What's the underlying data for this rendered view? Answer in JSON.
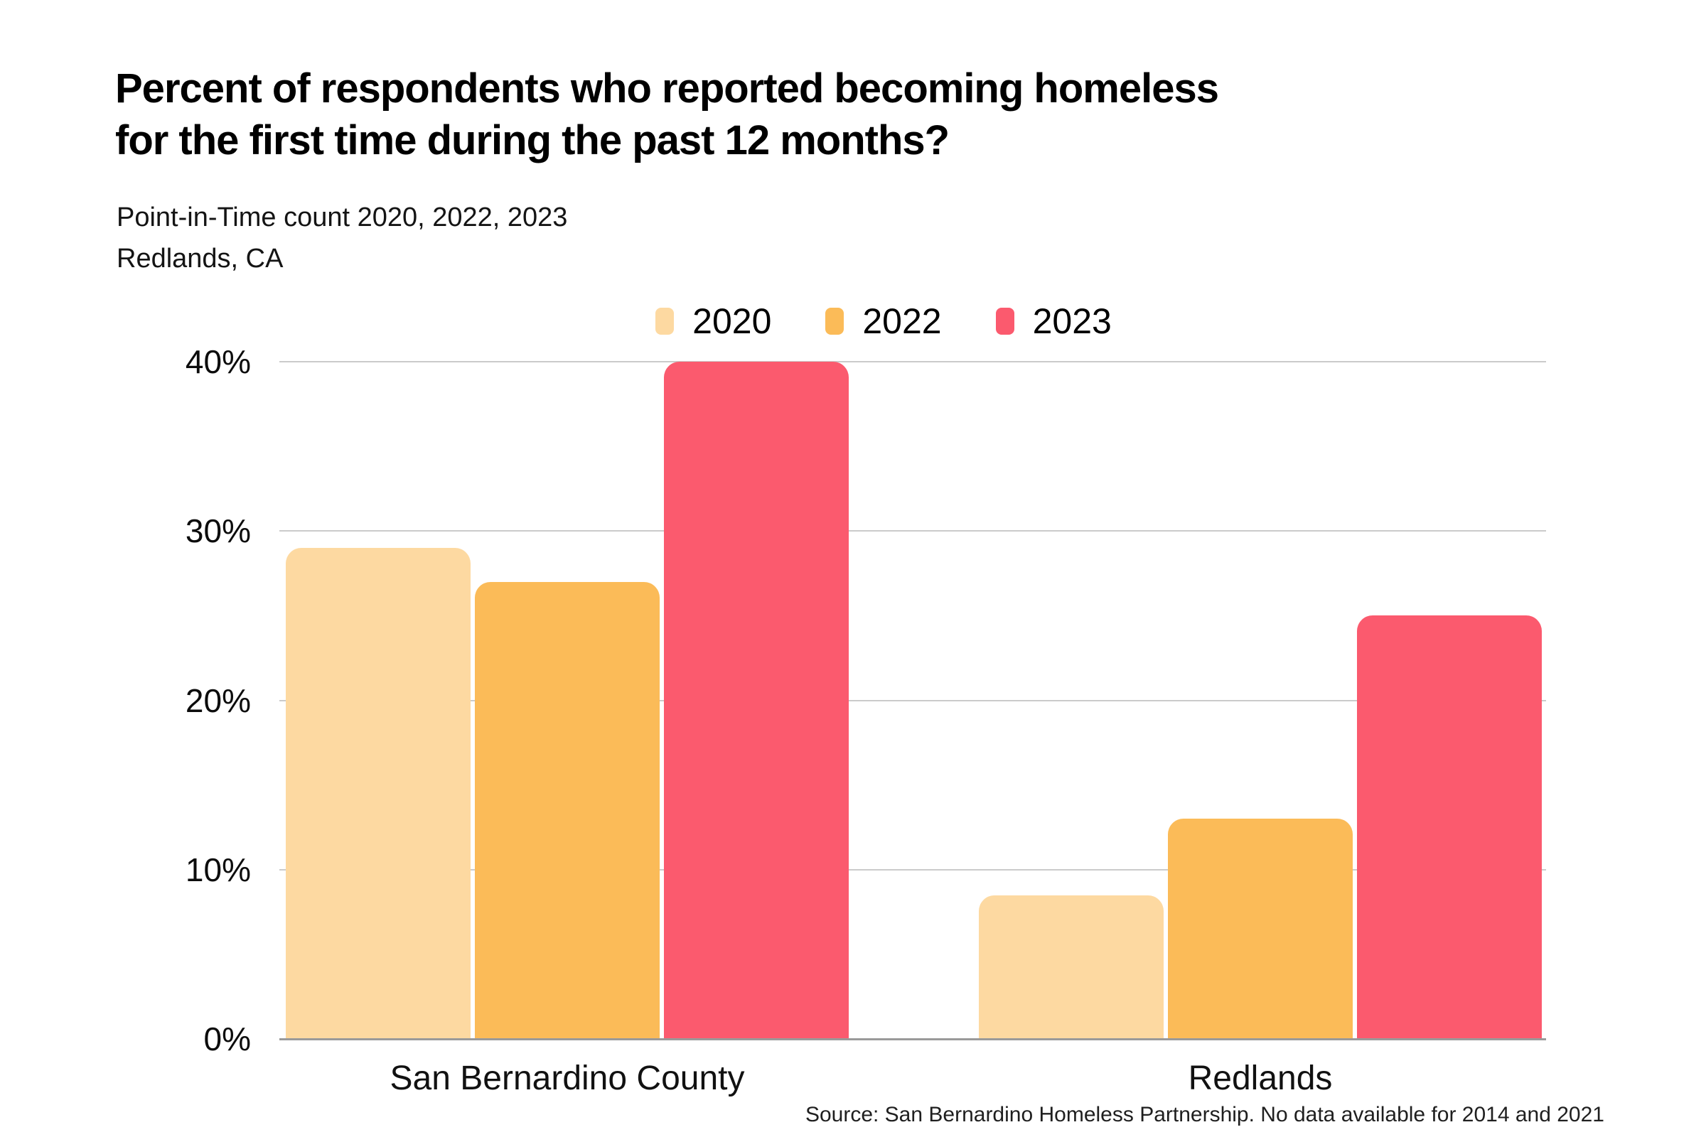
{
  "header": {
    "title": "Percent of respondents who reported becoming homeless for the first time during the past 12 months?",
    "subtitle_line1": "Point-in-Time count 2020, 2022, 2023",
    "subtitle_line2": "Redlands, CA"
  },
  "source": {
    "text": "Source: San Bernardino Homeless Partnership. No data available for 2014 and 2021"
  },
  "colors": {
    "series_2020": "#FDD9A1",
    "series_2022": "#FBBB58",
    "series_2023": "#FB5A6E",
    "gridline": "#CBCBCB",
    "axis_line": "#9A9A9A",
    "text": "#000000",
    "background": "#FFFFFF"
  },
  "chart_data": {
    "type": "bar",
    "title": "Percent of respondents who reported becoming homeless for the first time during the past 12 months?",
    "subtitle": "Point-in-Time count 2020, 2022, 2023 — Redlands, CA",
    "categories": [
      "San Bernardino County",
      "Redlands"
    ],
    "series": [
      {
        "name": "2020",
        "color": "#FDD9A1",
        "values": [
          29,
          8.5
        ]
      },
      {
        "name": "2022",
        "color": "#FBBB58",
        "values": [
          27,
          13
        ]
      },
      {
        "name": "2023",
        "color": "#FB5A6E",
        "values": [
          40,
          25
        ]
      }
    ],
    "xlabel": "",
    "ylabel": "",
    "ylim": [
      0,
      40
    ],
    "yticks": [
      0,
      10,
      20,
      30,
      40
    ],
    "ytick_labels": [
      "0%",
      "10%",
      "20%",
      "30%",
      "40%"
    ],
    "grid": "horizontal",
    "legend_position": "top-center",
    "bar_corner_radius": 22
  }
}
